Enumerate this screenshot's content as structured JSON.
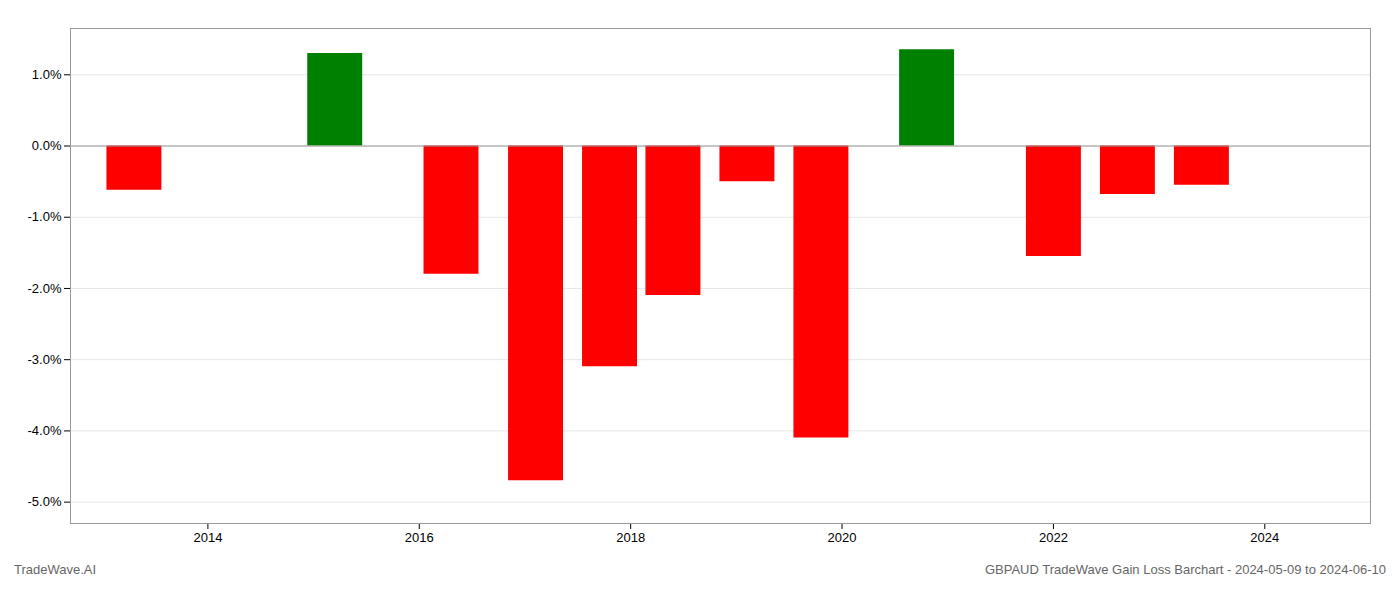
{
  "chart_data": {
    "type": "bar",
    "x": [
      2013.3,
      2015.2,
      2016.3,
      2017.1,
      2017.8,
      2018.4,
      2019.1,
      2019.8,
      2020.8,
      2022.0,
      2022.7,
      2023.4
    ],
    "values": [
      -0.62,
      1.3,
      -1.8,
      -4.7,
      -3.1,
      -2.1,
      -0.5,
      -4.1,
      1.35,
      -1.55,
      -0.68,
      -0.55
    ],
    "colors": [
      "#ff0000",
      "#008000",
      "#ff0000",
      "#ff0000",
      "#ff0000",
      "#ff0000",
      "#ff0000",
      "#ff0000",
      "#008000",
      "#ff0000",
      "#ff0000",
      "#ff0000"
    ],
    "xlim": [
      2012.7,
      2025.0
    ],
    "xticks": [
      2014,
      2016,
      2018,
      2020,
      2022,
      2024
    ],
    "ylim": [
      -5.3,
      1.65
    ],
    "yticks": [
      {
        "value": -5.0,
        "label": "-5.0%"
      },
      {
        "value": -4.0,
        "label": "-4.0%"
      },
      {
        "value": -3.0,
        "label": "-3.0%"
      },
      {
        "value": -2.0,
        "label": "-2.0%"
      },
      {
        "value": -1.0,
        "label": "-1.0%"
      },
      {
        "value": 0.0,
        "label": "0.0%"
      },
      {
        "value": 1.0,
        "label": "1.0%"
      }
    ],
    "grid": true,
    "annotations": [
      "TradeWave.AI",
      "GBPAUD TradeWave Gain Loss Barchart - 2024-05-09 to 2024-06-10"
    ]
  }
}
